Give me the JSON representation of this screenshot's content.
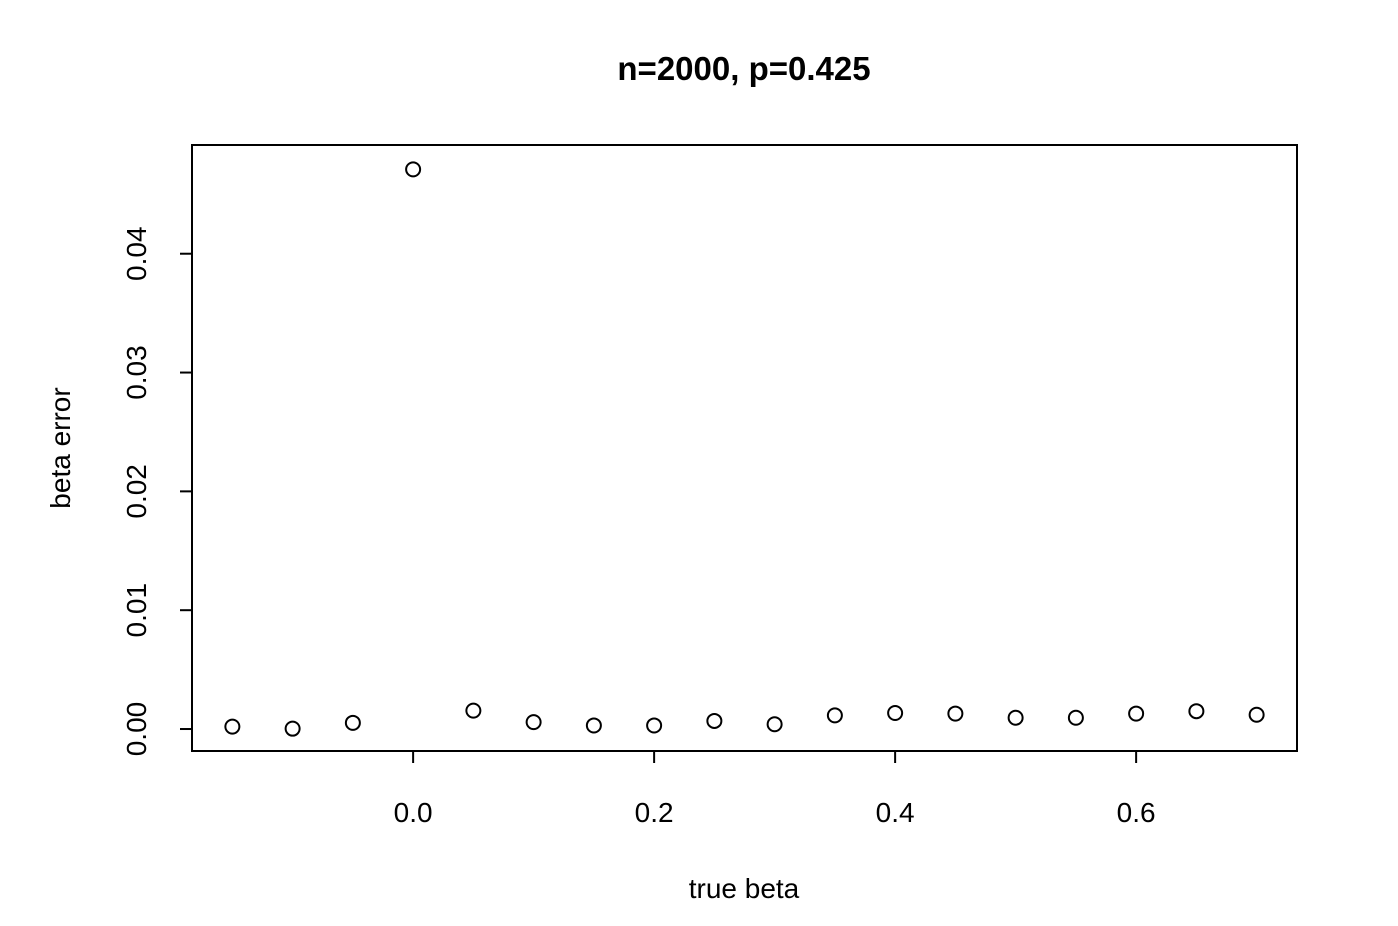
{
  "chart_data": {
    "type": "scatter",
    "title": "n=2000, p=0.425",
    "xlabel": "true beta",
    "ylabel": "beta error",
    "xlim": [
      -0.1835,
      0.7335
    ],
    "ylim": [
      -0.00185,
      0.04915
    ],
    "xticks": [
      0.0,
      0.2,
      0.4,
      0.6
    ],
    "xtick_labels": [
      "0.0",
      "0.2",
      "0.4",
      "0.6"
    ],
    "yticks": [
      0.0,
      0.01,
      0.02,
      0.03,
      0.04
    ],
    "ytick_labels": [
      "0.00",
      "0.01",
      "0.02",
      "0.03",
      "0.04"
    ],
    "grid": false,
    "marker": "open-circle",
    "series": [
      {
        "x": [
          -0.15,
          -0.1,
          -0.05,
          0.0,
          0.05,
          0.1,
          0.15,
          0.2,
          0.25,
          0.3,
          0.35,
          0.4,
          0.45,
          0.5,
          0.55,
          0.6,
          0.65,
          0.7
        ],
        "y": [
          0.0002,
          3e-05,
          0.00052,
          0.0471,
          0.00155,
          0.00058,
          0.0003,
          0.0003,
          0.00068,
          0.0004,
          0.00115,
          0.00135,
          0.0013,
          0.00095,
          0.00095,
          0.0013,
          0.0015,
          0.0012
        ]
      }
    ]
  }
}
